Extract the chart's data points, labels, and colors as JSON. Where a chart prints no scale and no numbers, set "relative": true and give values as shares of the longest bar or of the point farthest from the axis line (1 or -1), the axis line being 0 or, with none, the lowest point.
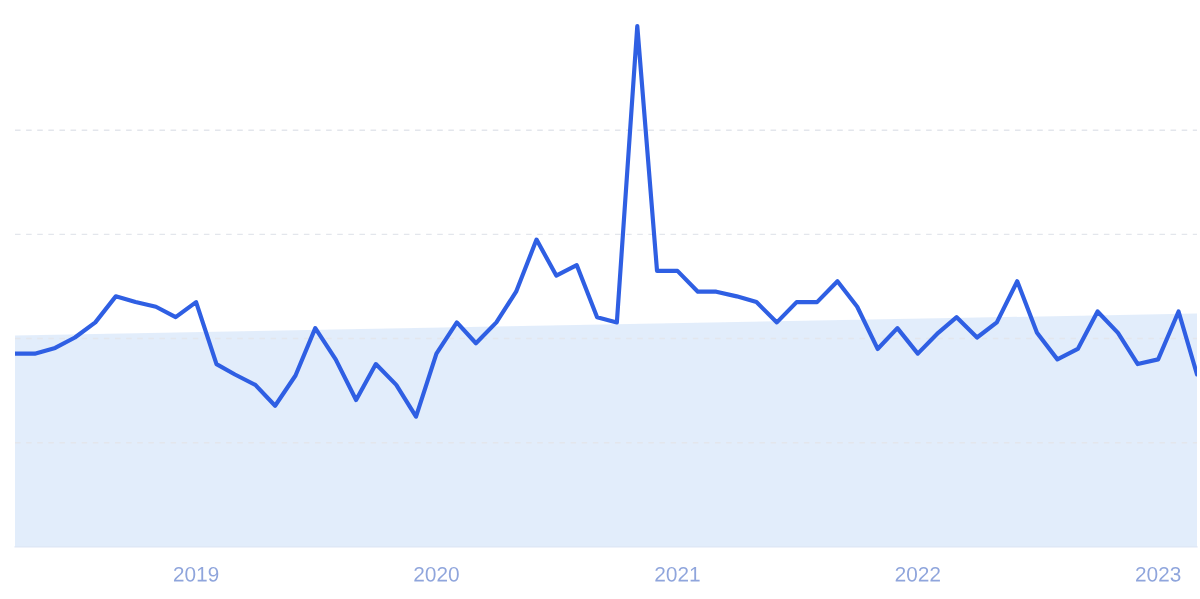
{
  "chart_data": {
    "type": "line",
    "relative": true,
    "x": [
      "2018-04",
      "2018-05",
      "2018-06",
      "2018-07",
      "2018-08",
      "2018-09",
      "2018-10",
      "2018-11",
      "2018-12",
      "2019-01",
      "2019-02",
      "2019-03",
      "2019-04",
      "2019-05",
      "2019-06",
      "2019-07",
      "2019-08",
      "2019-09",
      "2019-10",
      "2019-11",
      "2019-12",
      "2020-01",
      "2020-02",
      "2020-03",
      "2020-04",
      "2020-05",
      "2020-06",
      "2020-07",
      "2020-08",
      "2020-09",
      "2020-10",
      "2020-11",
      "2020-12",
      "2021-01",
      "2021-02",
      "2021-03",
      "2021-04",
      "2021-05",
      "2021-06",
      "2021-07",
      "2021-08",
      "2021-09",
      "2021-10",
      "2021-11",
      "2021-12",
      "2022-01",
      "2022-02",
      "2022-03",
      "2022-04",
      "2022-05",
      "2022-06",
      "2022-07",
      "2022-08",
      "2022-09",
      "2022-10",
      "2022-11",
      "2022-12",
      "2023-01",
      "2023-02",
      "2023-03"
    ],
    "series": [
      {
        "type": "area",
        "color": "#dbe8fa",
        "x": [
          "2018-04",
          "2023-03"
        ],
        "values": [
          0.406,
          0.448
        ]
      },
      {
        "color": "#2f5fe3",
        "values": [
          0.371,
          0.371,
          0.382,
          0.402,
          0.431,
          0.481,
          0.47,
          0.461,
          0.441,
          0.47,
          0.351,
          0.331,
          0.311,
          0.271,
          0.329,
          0.42,
          0.36,
          0.282,
          0.351,
          0.311,
          0.25,
          0.371,
          0.431,
          0.391,
          0.431,
          0.49,
          0.59,
          0.521,
          0.541,
          0.441,
          0.431,
          1,
          0.53,
          0.53,
          0.49,
          0.49,
          0.481,
          0.47,
          0.431,
          0.47,
          0.47,
          0.51,
          0.461,
          0.38,
          0.42,
          0.371,
          0.411,
          0.441,
          0.402,
          0.431,
          0.51,
          0.411,
          0.36,
          0.38,
          0.452,
          0.411,
          0.351,
          0.36,
          0.452,
          0.331
        ]
      }
    ],
    "xlim": [
      "2018-04",
      "2023-03"
    ],
    "xticks": [
      {
        "value": "2019",
        "label": "2019"
      },
      {
        "value": "2020",
        "label": "2020"
      },
      {
        "value": "2021",
        "label": "2021"
      },
      {
        "value": "2022",
        "label": "2022"
      },
      {
        "value": "2023",
        "label": "2023"
      }
    ],
    "ref_lines": [
      {
        "axis": "y",
        "value": 0.2,
        "color": "#e3e6ec",
        "line_style": "dashed"
      },
      {
        "axis": "y",
        "value": 0.4,
        "color": "#e3e6ec",
        "line_style": "dashed"
      },
      {
        "axis": "y",
        "value": 0.6,
        "color": "#e3e6ec",
        "line_style": "dashed"
      },
      {
        "axis": "y",
        "value": 0.8,
        "color": "#e3e6ec",
        "line_style": "dashed"
      }
    ],
    "tick_labels": "x",
    "line_style": "solid",
    "marker": "none",
    "legend": false
  }
}
